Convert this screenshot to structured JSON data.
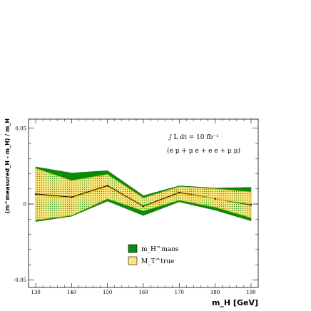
{
  "chart_data": {
    "type": "area",
    "xlabel": "m_H [GeV]",
    "ylabel": "(m^measured_H - m_H) / m_H",
    "xlim": [
      128,
      192
    ],
    "ylim": [
      -0.055,
      0.056
    ],
    "x": [
      130,
      140,
      150,
      160,
      170,
      180,
      190
    ],
    "xticks": [
      "130",
      "140",
      "150",
      "160",
      "170",
      "180",
      "190"
    ],
    "yticks": [
      {
        "value": 0.05,
        "label": "0.05"
      },
      {
        "value": 0,
        "label": "0"
      },
      {
        "value": -0.05,
        "label": "-0.05"
      }
    ],
    "annotation": {
      "line1": "∫ L dt = 10 fb⁻¹",
      "line2": "(e μ + μ e + e e + μ μ)"
    },
    "series": [
      {
        "name": "m_H^maos",
        "color": "#0a8c0a",
        "central": [
          0.0065,
          0.0045,
          0.012,
          -0.0015,
          0.0075,
          0.0035,
          -0.0005
        ],
        "upper": [
          0.0245,
          0.0205,
          0.022,
          0.0055,
          0.012,
          0.0105,
          0.011
        ],
        "lower": [
          -0.0115,
          -0.008,
          0.002,
          -0.0075,
          0.0015,
          -0.004,
          -0.011
        ]
      },
      {
        "name": "M_T^true",
        "color": "#ffe680",
        "central": [
          0.006,
          0.004,
          0.0115,
          -0.002,
          0.007,
          0.0035,
          0.0
        ],
        "upper": [
          0.0235,
          0.0155,
          0.0195,
          0.004,
          0.0115,
          0.01,
          0.008
        ],
        "lower": [
          -0.0105,
          -0.0075,
          0.0035,
          -0.0045,
          0.0025,
          -0.002,
          -0.009
        ]
      }
    ],
    "legend": {
      "position": "bottom-center"
    }
  }
}
